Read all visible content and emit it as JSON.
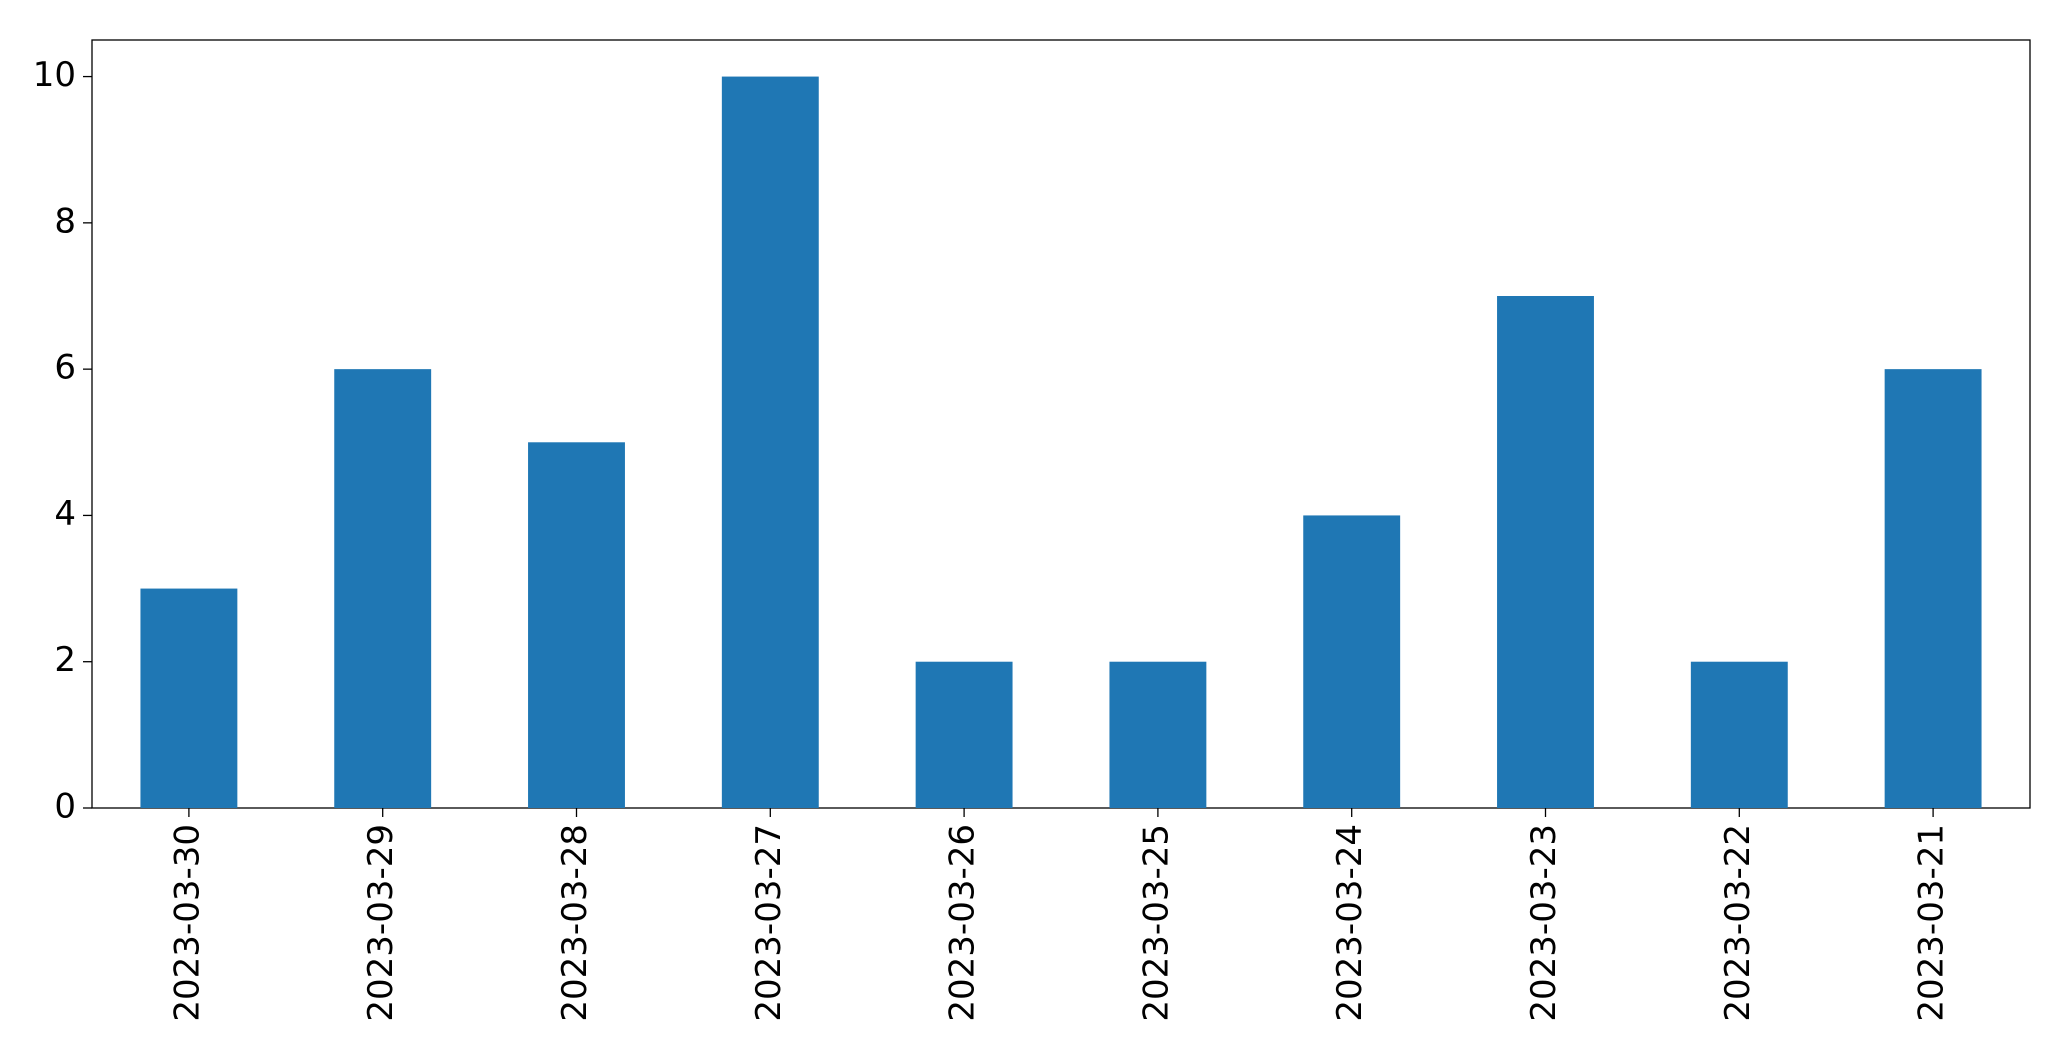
{
  "chart_data": {
    "type": "bar",
    "categories": [
      "2023-03-30",
      "2023-03-29",
      "2023-03-28",
      "2023-03-27",
      "2023-03-26",
      "2023-03-25",
      "2023-03-24",
      "2023-03-23",
      "2023-03-22",
      "2023-03-21"
    ],
    "values": [
      3,
      6,
      5,
      10,
      2,
      2,
      4,
      7,
      2,
      6
    ],
    "color": "#1f77b4",
    "ylim": [
      0,
      10.5
    ],
    "yticks": [
      0,
      2,
      4,
      6,
      8,
      10
    ],
    "grid": false
  }
}
